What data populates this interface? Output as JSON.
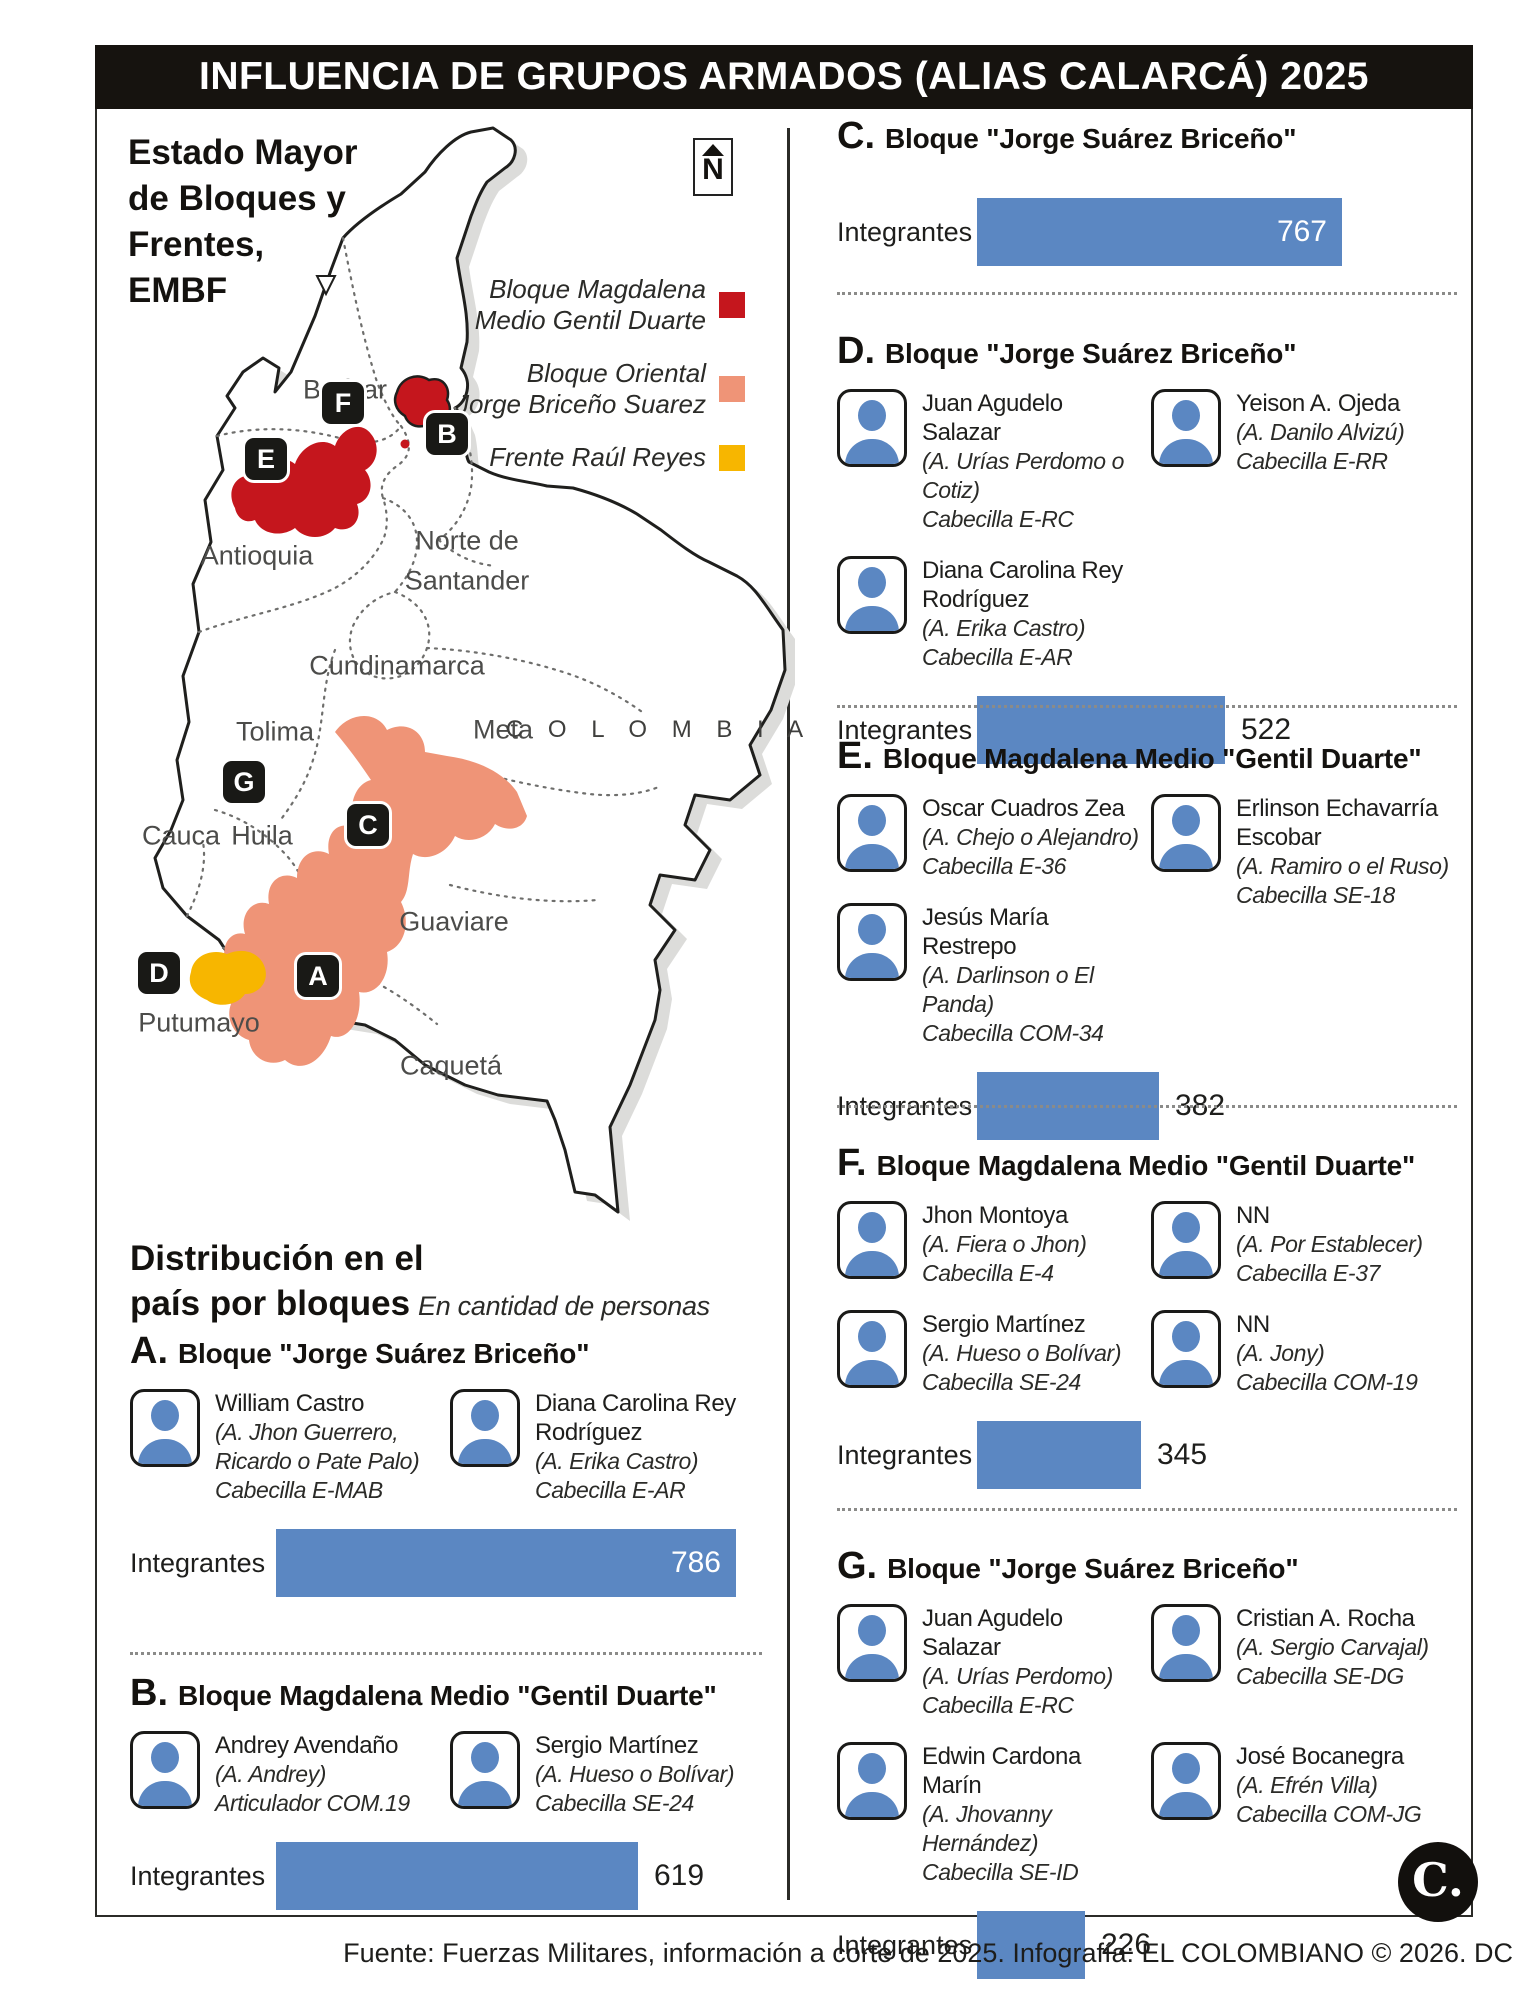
{
  "title": "INFLUENCIA DE GRUPOS ARMADOS (ALIAS CALARCÁ) 2025",
  "colors": {
    "blue": "#5b87c2",
    "red": "#c5161d",
    "salmon": "#ef9477",
    "yellow": "#f7b600"
  },
  "map": {
    "heading_lines": [
      "Estado Mayor",
      "de Bloques y",
      "Frentes,",
      "EMBF"
    ],
    "compass": "N",
    "legend": [
      {
        "lines": [
          "Bloque Magdalena",
          "Medio Gentil Duarte"
        ],
        "color": "#c5161d"
      },
      {
        "lines": [
          "Bloque Oriental",
          "Jorge Briceño Suarez"
        ],
        "color": "#ef9477"
      },
      {
        "lines": [
          "Frente Raúl Reyes",
          ""
        ],
        "color": "#f7b600"
      }
    ],
    "labels": [
      "Bolívar",
      "Norte de",
      "Santander",
      "Antioquia",
      "Cundinamarca",
      "Tolima",
      "Meta",
      "C O L O M B I A",
      "Cauca",
      "Huila",
      "Guaviare",
      "Putumayo",
      "Caquetá"
    ],
    "markers": [
      "A",
      "B",
      "C",
      "D",
      "E",
      "F",
      "G"
    ]
  },
  "distribution": {
    "heading_line1": "Distribución en el",
    "heading_line2": "país por bloques",
    "note": "En cantidad de personas"
  },
  "sections": [
    {
      "letter": "A.",
      "title": "Bloque \"Jorge Suárez Briceño\"",
      "label": "Integrantes",
      "value": 786,
      "value_inside": true,
      "people": [
        {
          "name": "William Castro",
          "alias": "(A. Jhon Guerrero, Ricardo o Pate Palo)",
          "role": "Cabecilla E-MAB"
        },
        {
          "name": "Diana Carolina Rey Rodríguez",
          "alias": "(A. Erika Castro)",
          "role": "Cabecilla E-AR"
        }
      ]
    },
    {
      "letter": "B.",
      "title": "Bloque Magdalena Medio \"Gentil Duarte\"",
      "label": "Integrantes",
      "value": 619,
      "value_inside": false,
      "people": [
        {
          "name": "Andrey Avendaño",
          "alias": "(A. Andrey)",
          "role": "Articulador COM.19"
        },
        {
          "name": "Sergio Martínez",
          "alias": "(A. Hueso o Bolívar)",
          "role": "Cabecilla SE-24"
        }
      ]
    },
    {
      "letter": "C.",
      "title": "Bloque \"Jorge Suárez Briceño\"",
      "label": "Integrantes",
      "value": 767,
      "value_inside": true,
      "people": []
    },
    {
      "letter": "D.",
      "title": "Bloque \"Jorge Suárez Briceño\"",
      "label": "Integrantes",
      "value": 522,
      "value_inside": false,
      "people": [
        {
          "name": "Juan Agudelo Salazar",
          "alias": "(A. Urías Perdomo o Cotiz)",
          "role": "Cabecilla E-RC"
        },
        {
          "name": "Yeison A. Ojeda",
          "alias": "(A. Danilo Alvizú)",
          "role": "Cabecilla E-RR"
        },
        {
          "name": "Diana Carolina Rey Rodríguez",
          "alias": "(A. Erika Castro)",
          "role": "Cabecilla E-AR"
        }
      ]
    },
    {
      "letter": "E.",
      "title": "Bloque Magdalena Medio \"Gentil Duarte\"",
      "label": "Integrantes",
      "value": 382,
      "value_inside": false,
      "people": [
        {
          "name": "Oscar Cuadros Zea",
          "alias": "(A. Chejo o Alejandro)",
          "role": "Cabecilla E-36"
        },
        {
          "name": "Erlinson Echavarría Escobar",
          "alias": "(A. Ramiro o el Ruso)",
          "role": "Cabecilla SE-18",
          "tall": true
        },
        {
          "name": "Jesús María Restrepo",
          "alias": "(A. Darlinson o El Panda)",
          "role": "Cabecilla COM-34"
        }
      ]
    },
    {
      "letter": "F.",
      "title": "Bloque Magdalena Medio \"Gentil Duarte\"",
      "label": "Integrantes",
      "value": 345,
      "value_inside": false,
      "people": [
        {
          "name": "Jhon Montoya",
          "alias": "(A. Fiera o Jhon)",
          "role": "Cabecilla E-4"
        },
        {
          "name": "NN",
          "alias": "(A. Por Establecer)",
          "role": "Cabecilla E-37"
        },
        {
          "name": "Sergio Martínez",
          "alias": "(A. Hueso o Bolívar)",
          "role": "Cabecilla SE-24"
        },
        {
          "name": "NN",
          "alias": "(A. Jony)",
          "role": "Cabecilla COM-19"
        }
      ]
    },
    {
      "letter": "G.",
      "title": "Bloque \"Jorge Suárez Briceño\"",
      "label": "Integrantes",
      "value": 226,
      "value_inside": false,
      "people": [
        {
          "name": "Juan Agudelo Salazar",
          "alias": "(A. Urías Perdomo)",
          "role": "Cabecilla E-RC"
        },
        {
          "name": "Cristian A. Rocha",
          "alias": "(A. Sergio Carvajal)",
          "role": "Cabecilla SE-DG"
        },
        {
          "name": "Edwin Cardona Marín",
          "alias": "(A. Jhovanny Hernández)",
          "role": "Cabecilla SE-ID"
        },
        {
          "name": "José Bocanegra",
          "alias": "(A. Efrén Villa)",
          "role": "Cabecilla COM-JG"
        }
      ]
    }
  ],
  "footer": "Fuente: Fuerzas Militares, información a corte de 2025. Infografía: EL COLOMBIANO © 2026. DC",
  "logo": "C.",
  "chart_data": {
    "type": "bar",
    "categories": [
      "A. Bloque \"Jorge Suárez Briceño\"",
      "B. Bloque Magdalena Medio \"Gentil Duarte\"",
      "C. Bloque \"Jorge Suárez Briceño\"",
      "D. Bloque \"Jorge Suárez Briceño\"",
      "E. Bloque Magdalena Medio \"Gentil Duarte\"",
      "F. Bloque Magdalena Medio \"Gentil Duarte\"",
      "G. Bloque \"Jorge Suárez Briceño\""
    ],
    "values": [
      786,
      619,
      767,
      522,
      382,
      345,
      226
    ],
    "title": "Distribución en el país por bloques",
    "xlabel": "Integrantes",
    "ylabel": "",
    "unit": "personas",
    "legend_position": "none",
    "grid": false
  }
}
